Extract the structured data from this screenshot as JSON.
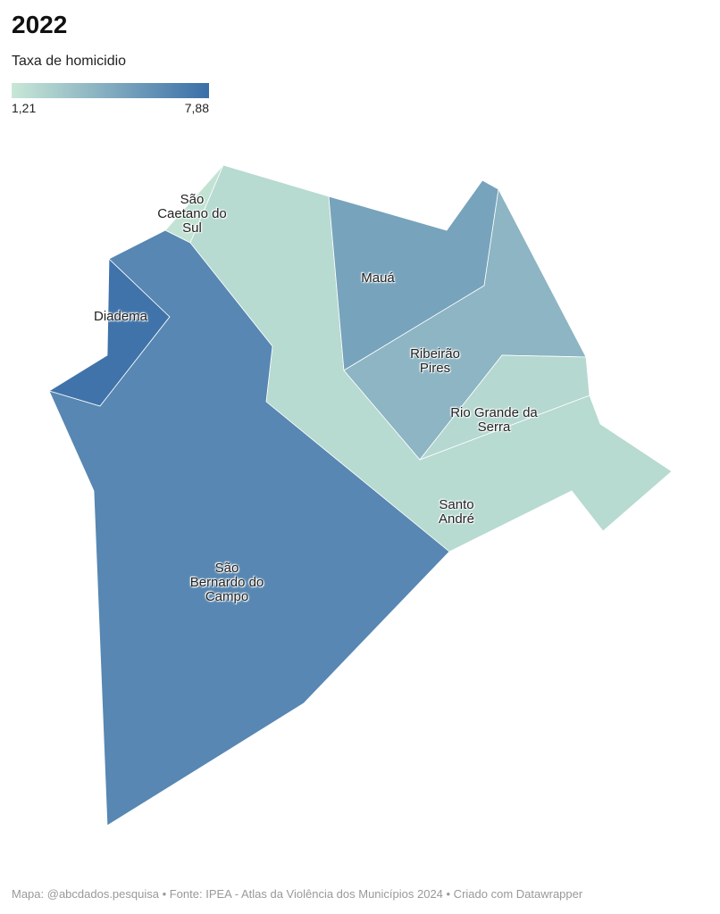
{
  "title": "2022",
  "legend": {
    "title": "Taxa de homicidio",
    "min": {
      "value": 1.21,
      "label": "1,21"
    },
    "max": {
      "value": 7.88,
      "label": "7,88"
    },
    "colors": [
      "#c8e8d6",
      "#3a6ea8"
    ]
  },
  "regions": [
    {
      "name": "São Caetano do Sul",
      "value": 1.5
    },
    {
      "name": "Santo André",
      "value": 2.0
    },
    {
      "name": "Mauá",
      "value": 5.0
    },
    {
      "name": "Ribeirão Pires",
      "value": 4.0
    },
    {
      "name": "Rio Grande da Serra",
      "value": 2.1
    },
    {
      "name": "Diadema",
      "value": 7.6
    },
    {
      "name": "São Bernardo do Campo",
      "value": 6.5
    }
  ],
  "footer": "Mapa: @abcdados.pesquisa • Fonte: IPEA - Atlas da Violência dos Municípios 2024 • Criado com Datawrapper"
}
